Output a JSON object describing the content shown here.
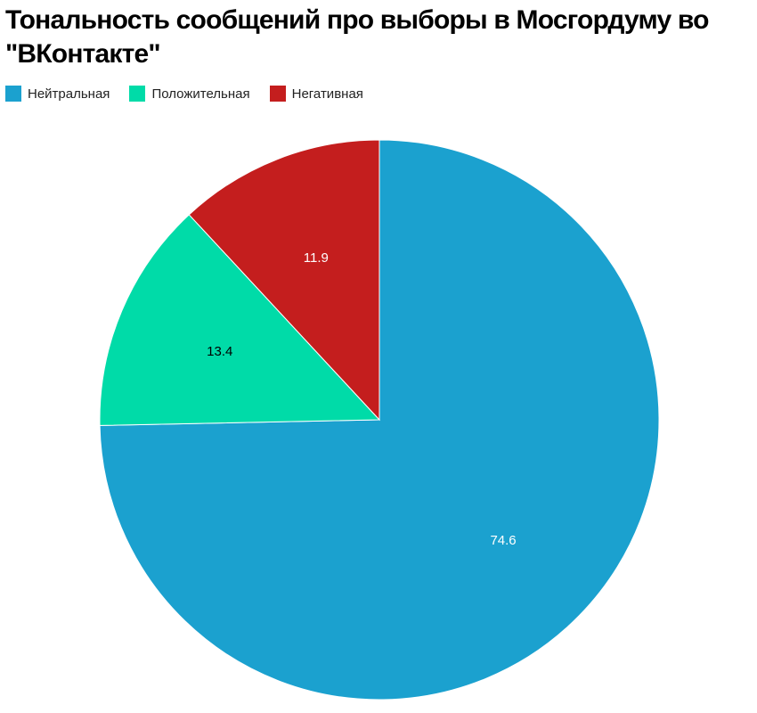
{
  "chart_data": {
    "type": "pie",
    "title": "Тональность сообщений про выборы в Мосгордуму во \"ВКонтакте\"",
    "legend_position": "top-left",
    "categories": [
      "Нейтральная",
      "Положительная",
      "Негативная"
    ],
    "values": [
      74.6,
      13.4,
      11.9
    ],
    "value_labels": [
      "74.6",
      "13.4",
      "11.9"
    ],
    "colors": [
      "#1ba1cf",
      "#00dba8",
      "#c41e1e"
    ],
    "label_colors": [
      "#ffffff",
      "#000000",
      "#ffffff"
    ]
  }
}
